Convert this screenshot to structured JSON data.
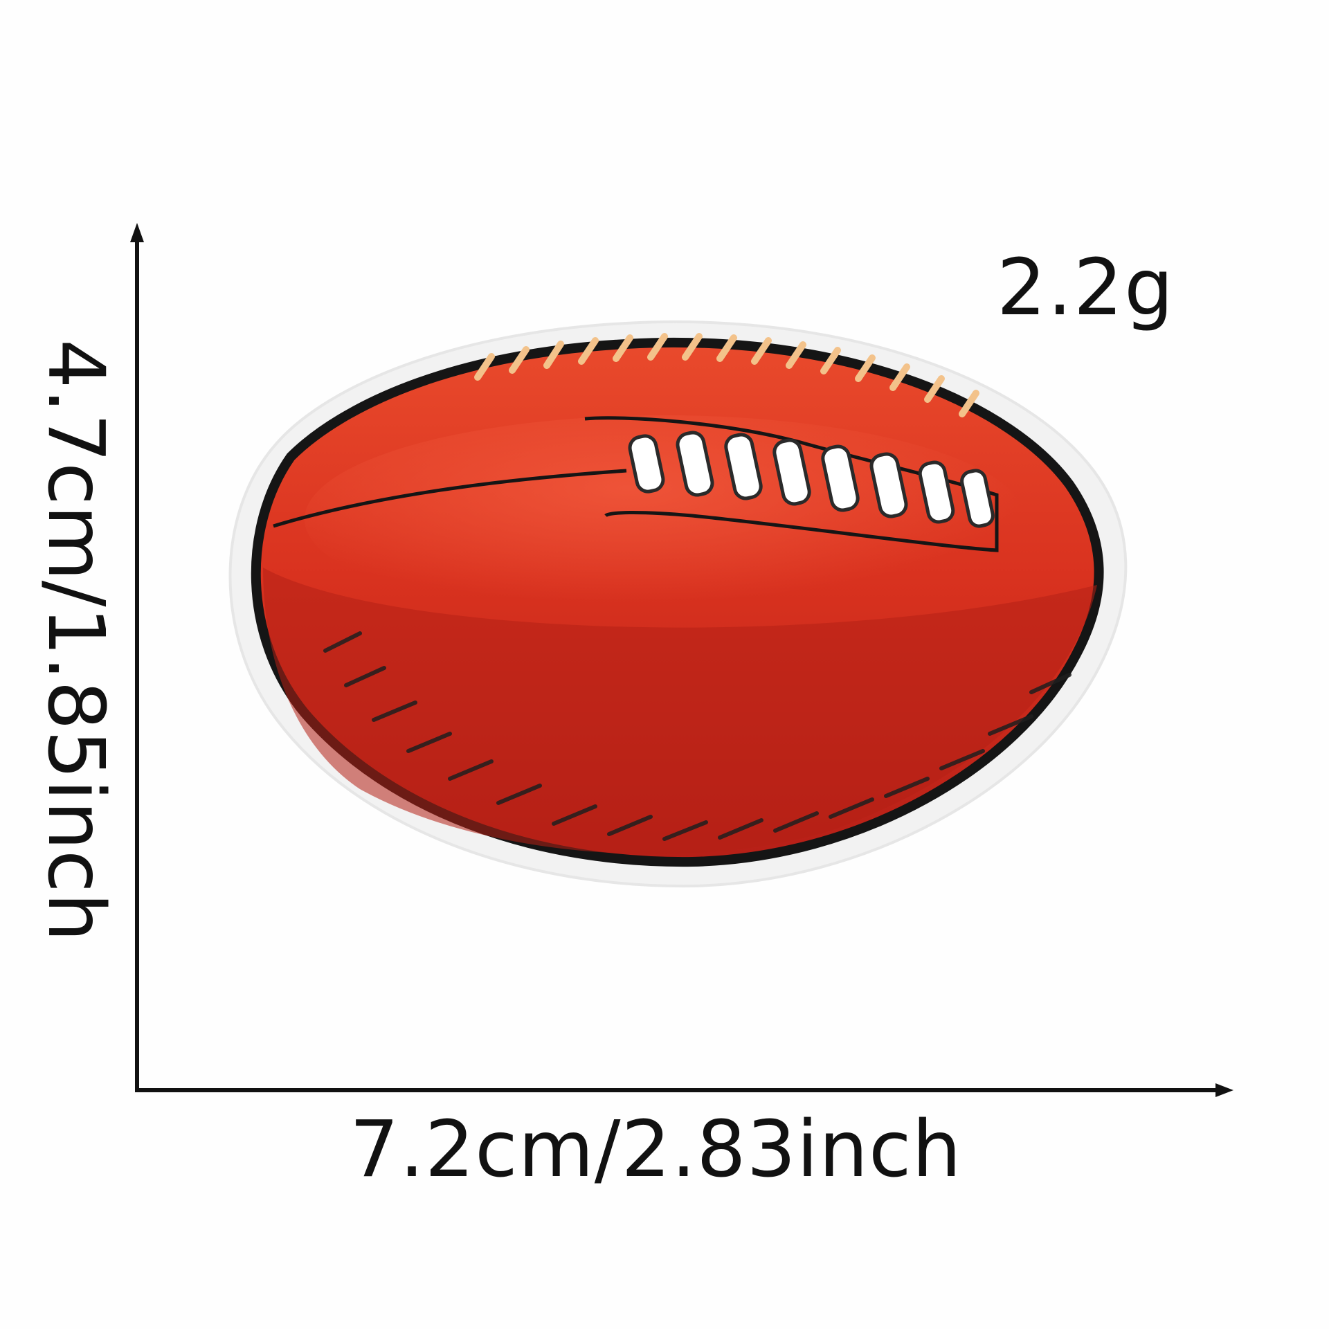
{
  "labels": {
    "weight": "2.2g",
    "height": "4.7cm/1.85inch",
    "width": "7.2cm/2.83inch"
  },
  "colors": {
    "background": "#fefefe",
    "ball_red": "#d8321f",
    "ball_dark": "#b82218",
    "outline": "#151515",
    "felt_border": "#f1f1f1",
    "laces": "#ffffff",
    "highlight": "#f3c28a"
  }
}
